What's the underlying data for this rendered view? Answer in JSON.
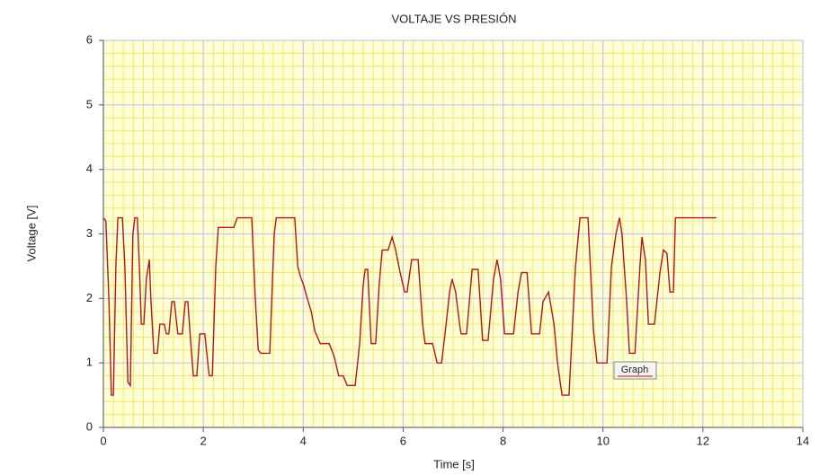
{
  "chart_data": {
    "type": "line",
    "title": "VOLTAJE VS PRESIÓN",
    "xlabel": "Time [s]",
    "ylabel": "Voltage [V]",
    "xlim": [
      0,
      14
    ],
    "ylim": [
      0,
      6
    ],
    "xticks": [
      0,
      2,
      4,
      6,
      8,
      10,
      12,
      14
    ],
    "yticks": [
      0,
      1,
      2,
      3,
      4,
      5,
      6
    ],
    "grid": true,
    "legend": "lower right",
    "series": [
      {
        "name": "Graph",
        "color": "#b4141e",
        "x": [
          0,
          0.05,
          0.11,
          0.16,
          0.2,
          0.25,
          0.29,
          0.38,
          0.43,
          0.49,
          0.54,
          0.59,
          0.63,
          0.68,
          0.72,
          0.76,
          0.81,
          0.86,
          0.92,
          0.95,
          1.01,
          1.08,
          1.13,
          1.22,
          1.26,
          1.31,
          1.37,
          1.42,
          1.49,
          1.58,
          1.64,
          1.69,
          1.75,
          1.8,
          1.87,
          1.93,
          2.03,
          2.09,
          2.12,
          2.18,
          2.25,
          2.3,
          2.61,
          2.68,
          2.97,
          3.04,
          3.1,
          3.15,
          3.33,
          3.42,
          3.46,
          3.83,
          3.89,
          3.94,
          4.01,
          4.08,
          4.16,
          4.23,
          4.34,
          4.52,
          4.62,
          4.71,
          4.8,
          4.88,
          5.04,
          5.13,
          5.2,
          5.24,
          5.29,
          5.36,
          5.45,
          5.52,
          5.58,
          5.7,
          5.78,
          5.85,
          5.94,
          6.03,
          6.08,
          6.17,
          6.3,
          6.39,
          6.44,
          6.59,
          6.68,
          6.77,
          6.86,
          6.93,
          6.98,
          7.05,
          7.13,
          7.16,
          7.27,
          7.38,
          7.5,
          7.59,
          7.7,
          7.81,
          7.88,
          7.95,
          8.03,
          8.21,
          8.3,
          8.37,
          8.48,
          8.57,
          8.73,
          8.8,
          8.91,
          9.02,
          9.09,
          9.18,
          9.32,
          9.45,
          9.54,
          9.7,
          9.81,
          9.88,
          10.08,
          10.17,
          10.26,
          10.33,
          10.38,
          10.47,
          10.53,
          10.64,
          10.74,
          10.78,
          10.85,
          10.91,
          11.03,
          11.14,
          11.21,
          11.28,
          11.34,
          11.41,
          11.45,
          12.27
        ],
        "values": [
          3.25,
          3.2,
          2.0,
          0.5,
          0.5,
          2.5,
          3.25,
          3.25,
          2.5,
          0.7,
          0.65,
          3.0,
          3.25,
          3.25,
          2.5,
          1.6,
          1.6,
          2.3,
          2.6,
          2.0,
          1.15,
          1.15,
          1.6,
          1.6,
          1.45,
          1.45,
          1.95,
          1.95,
          1.45,
          1.45,
          1.95,
          1.95,
          1.3,
          0.8,
          0.8,
          1.45,
          1.45,
          1.0,
          0.8,
          0.8,
          2.5,
          3.1,
          3.1,
          3.25,
          3.25,
          2.0,
          1.2,
          1.15,
          1.15,
          3.0,
          3.25,
          3.25,
          2.5,
          2.35,
          2.2,
          2.0,
          1.8,
          1.5,
          1.3,
          1.3,
          1.1,
          0.8,
          0.8,
          0.65,
          0.65,
          1.3,
          2.2,
          2.45,
          2.45,
          1.3,
          1.3,
          2.2,
          2.75,
          2.75,
          2.95,
          2.75,
          2.4,
          2.1,
          2.1,
          2.6,
          2.6,
          1.6,
          1.3,
          1.3,
          1.0,
          1.0,
          1.6,
          2.1,
          2.3,
          2.1,
          1.6,
          1.45,
          1.45,
          2.45,
          2.45,
          1.35,
          1.35,
          2.3,
          2.6,
          2.3,
          1.45,
          1.45,
          2.1,
          2.4,
          2.4,
          1.45,
          1.45,
          1.95,
          2.1,
          1.6,
          1.0,
          0.5,
          0.5,
          2.5,
          3.25,
          3.25,
          1.5,
          1.0,
          1.0,
          2.5,
          3.0,
          3.25,
          3.0,
          2.0,
          1.15,
          1.15,
          2.5,
          2.95,
          2.6,
          1.6,
          1.6,
          2.4,
          2.75,
          2.7,
          2.1,
          2.1,
          3.25,
          3.25
        ]
      }
    ]
  }
}
